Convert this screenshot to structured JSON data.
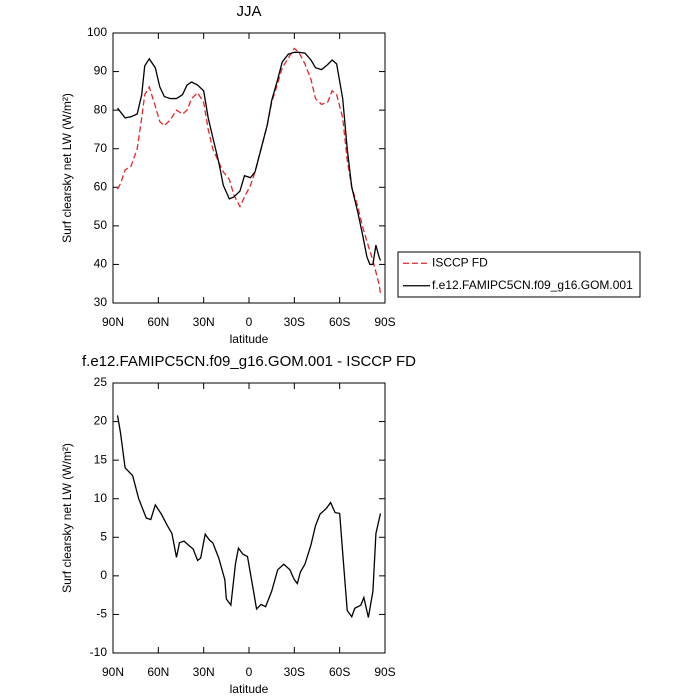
{
  "chart_data": [
    {
      "type": "line",
      "title": "JJA",
      "xlabel": "latitude",
      "ylabel": "Surf clearsky net LW (W/m²)",
      "x": [
        87,
        85,
        82,
        78,
        74,
        71,
        69,
        66,
        62,
        59,
        56,
        52,
        48,
        44,
        41,
        38,
        34,
        30,
        27,
        24,
        20,
        17,
        13,
        10,
        6,
        3,
        -1,
        -4,
        -8,
        -12,
        -15,
        -19,
        -22,
        -26,
        -30,
        -33,
        -37,
        -41,
        -44,
        -48,
        -52,
        -55,
        -58,
        -62,
        -65,
        -68,
        -72,
        -75,
        -78,
        -80,
        -82,
        -84,
        -86,
        -87
      ],
      "series": [
        {
          "name": "ISCCP FD",
          "color": "#e8262a",
          "dashed": true,
          "values": [
            59.5,
            61,
            64.5,
            65.5,
            70,
            78,
            84,
            86,
            81,
            77,
            76,
            77.5,
            80,
            79,
            80,
            83,
            84.5,
            82,
            75,
            70,
            66.5,
            64,
            62,
            58,
            55,
            57.5,
            60.5,
            64,
            70,
            76,
            82,
            87,
            91,
            93.5,
            96,
            95,
            92,
            88,
            83,
            81.5,
            82,
            85,
            84,
            78,
            67,
            60,
            55,
            50,
            46,
            43.5,
            41,
            38,
            35,
            32.5
          ]
        },
        {
          "name": "f.e12.FAMIPC5CN.f09_g16.GOM.001",
          "color": "#000000",
          "dashed": false,
          "values": [
            80.5,
            79.5,
            78,
            78.3,
            79,
            84,
            91.5,
            93.3,
            91,
            86,
            83.5,
            83,
            83,
            84,
            86.5,
            87.3,
            86.5,
            85,
            78,
            73,
            66.5,
            60.5,
            57,
            57.5,
            59,
            63,
            62.5,
            64,
            70,
            76,
            82.5,
            88,
            92.5,
            94.5,
            95,
            95,
            94.8,
            93,
            91,
            90.5,
            91.8,
            93,
            92,
            83,
            70,
            60,
            53.5,
            48,
            42,
            40,
            40,
            45,
            42,
            41
          ]
        }
      ],
      "xlim": [
        90,
        -90
      ],
      "xticks": [
        {
          "value": 90,
          "label": "90N"
        },
        {
          "value": 60,
          "label": "60N"
        },
        {
          "value": 30,
          "label": "30N"
        },
        0,
        {
          "value": -30,
          "label": "30S"
        },
        {
          "value": -60,
          "label": "60S"
        },
        {
          "value": -90,
          "label": "90S"
        }
      ],
      "ylim": [
        30,
        100
      ],
      "yticks": [
        30,
        40,
        50,
        60,
        70,
        80,
        90,
        100
      ],
      "legend": "right"
    },
    {
      "type": "line",
      "title": "f.e12.FAMIPC5CN.f09_g16.GOM.001 - ISCCP FD",
      "xlabel": "latitude",
      "ylabel": "Surf clearsky net LW (W/m²)",
      "x": [
        87,
        85,
        82,
        77,
        73,
        68,
        65,
        62,
        58,
        54,
        51,
        48,
        46,
        43,
        39,
        37,
        34,
        32,
        29,
        26,
        24,
        20,
        16,
        15,
        12,
        9,
        7,
        4,
        1,
        -3,
        -5,
        -8,
        -11,
        -15,
        -19,
        -23,
        -27,
        -30,
        -32,
        -34,
        -37,
        -41,
        -44,
        -47,
        -51,
        -54,
        -57,
        -60,
        -62,
        -65,
        -68,
        -70,
        -74,
        -76,
        -79,
        -82,
        -84,
        -87
      ],
      "series": [
        {
          "color": "#000000",
          "dashed": false,
          "values": [
            20.8,
            18.5,
            14,
            13,
            10,
            7.5,
            7.3,
            9.2,
            8,
            6.5,
            5.5,
            2.4,
            4.3,
            4.5,
            3.8,
            3.5,
            2,
            2.3,
            5.4,
            4.6,
            4.3,
            2.3,
            -0.5,
            -3,
            -3.8,
            1.5,
            3.6,
            2.8,
            2.5,
            -2,
            -4.3,
            -3.7,
            -4,
            -2,
            0.8,
            1.5,
            0.8,
            -0.5,
            -1,
            0.5,
            1.5,
            4,
            6.5,
            8,
            8.7,
            9.5,
            8.2,
            8.1,
            3,
            -4.5,
            -5.3,
            -4.2,
            -3.8,
            -2.8,
            -5.4,
            -2,
            5.5,
            8.1
          ]
        }
      ],
      "xlim": [
        90,
        -90
      ],
      "xticks": [
        {
          "value": 90,
          "label": "90N"
        },
        {
          "value": 60,
          "label": "60N"
        },
        {
          "value": 30,
          "label": "30N"
        },
        0,
        {
          "value": -30,
          "label": "30S"
        },
        {
          "value": -60,
          "label": "60S"
        },
        {
          "value": -90,
          "label": "90S"
        }
      ],
      "ylim": [
        -10,
        25
      ],
      "yticks": [
        -10,
        -5,
        0,
        5,
        10,
        15,
        20,
        25
      ]
    }
  ]
}
